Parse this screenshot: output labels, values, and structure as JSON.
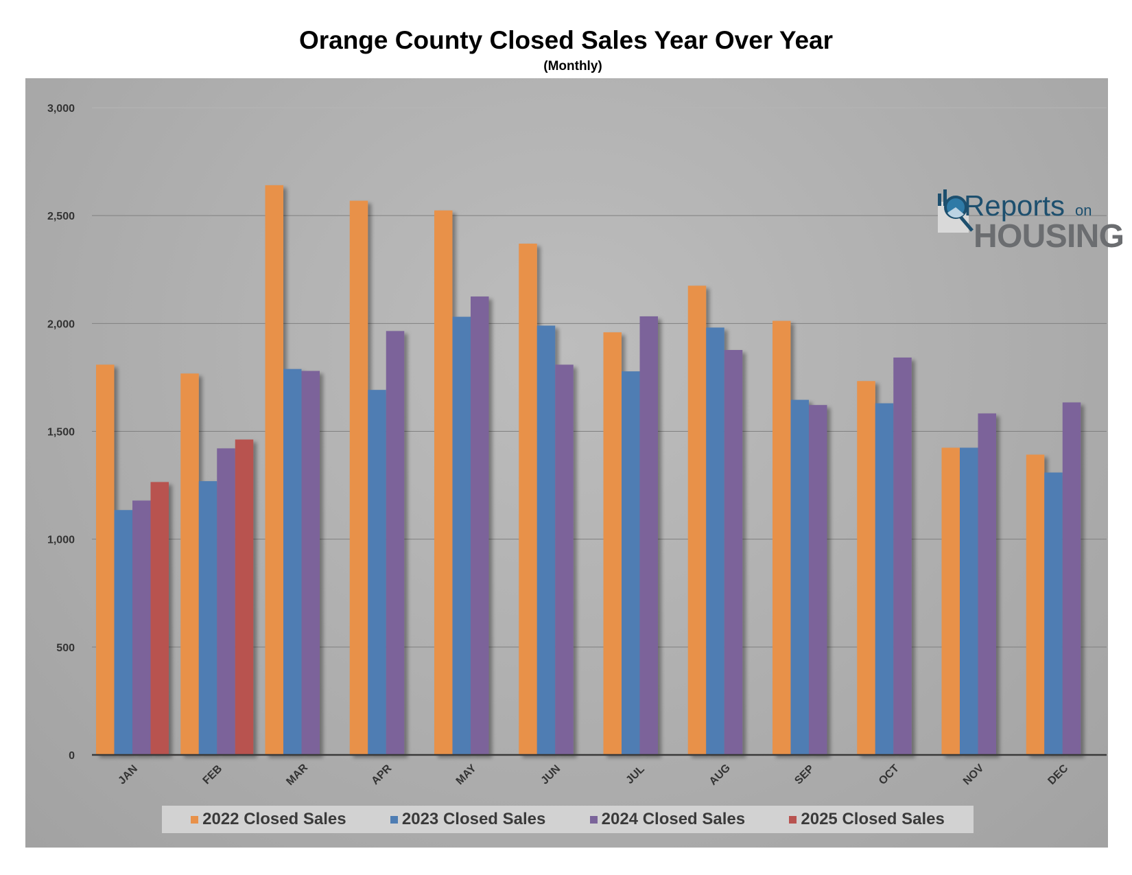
{
  "chart_data": {
    "type": "bar",
    "title": "Orange County Closed Sales Year Over Year",
    "subtitle": "(Monthly)",
    "xlabel": "",
    "ylabel": "",
    "ylim": [
      0,
      3000
    ],
    "yticks": [
      0,
      500,
      1000,
      1500,
      2000,
      2500,
      3000
    ],
    "ytick_labels": [
      "0",
      "500",
      "1,000",
      "1,500",
      "2,000",
      "2,500",
      "3,000"
    ],
    "grid": true,
    "legend_position": "bottom",
    "categories": [
      "JAN",
      "FEB",
      "MAR",
      "APR",
      "MAY",
      "JUN",
      "JUL",
      "AUG",
      "SEP",
      "OCT",
      "NOV",
      "DEC"
    ],
    "series": [
      {
        "name": "2022 Closed Sales",
        "color": "#E8914A",
        "values": [
          1809,
          1768,
          2641,
          2569,
          2524,
          2370,
          1959,
          2175,
          2012,
          1733,
          1424,
          1392
        ]
      },
      {
        "name": "2023 Closed Sales",
        "color": "#4F7DB3",
        "values": [
          1135,
          1269,
          1789,
          1692,
          2031,
          1990,
          1778,
          1981,
          1646,
          1630,
          1424,
          1309
        ]
      },
      {
        "name": "2024 Closed Sales",
        "color": "#7B649A",
        "values": [
          1179,
          1421,
          1780,
          1965,
          2125,
          1809,
          2033,
          1877,
          1622,
          1842,
          1583,
          1634
        ]
      },
      {
        "name": "2025 Closed Sales",
        "color": "#B85350",
        "values": [
          1265,
          1462,
          null,
          null,
          null,
          null,
          null,
          null,
          null,
          null,
          null,
          null
        ]
      }
    ]
  },
  "logo": {
    "line1": "Reports",
    "line1b": "on",
    "line2": "HOUSING"
  }
}
